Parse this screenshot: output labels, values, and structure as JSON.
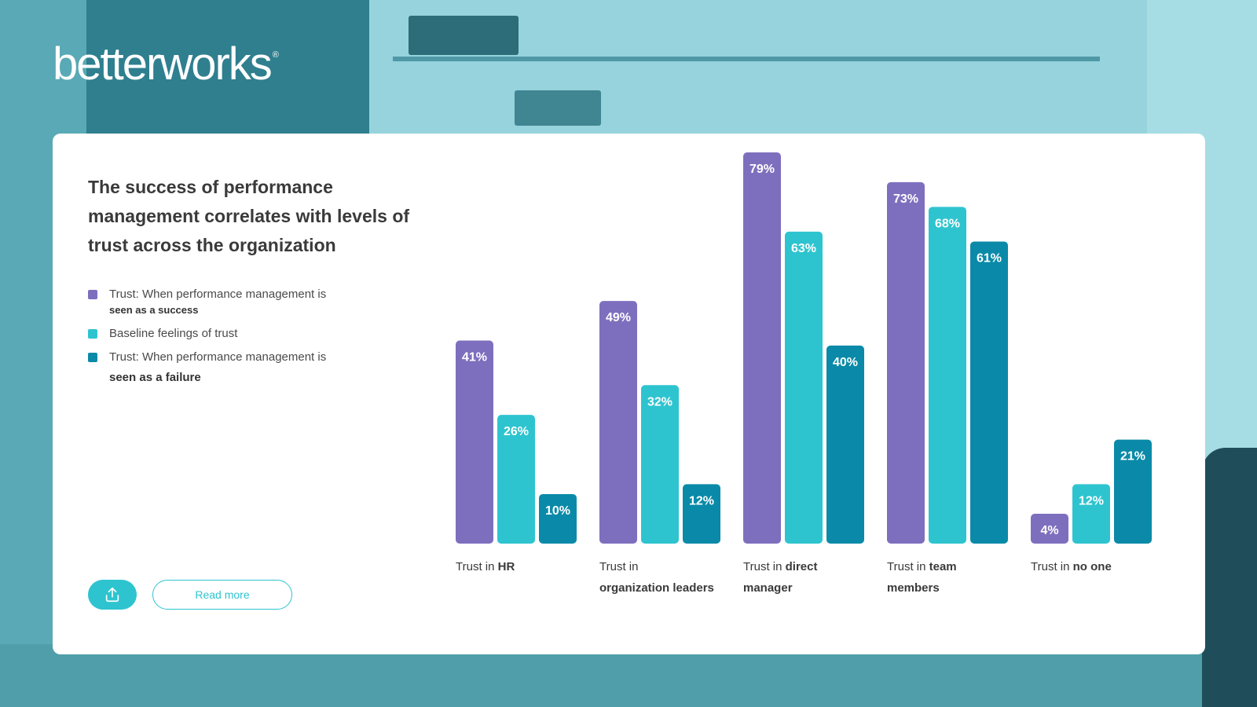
{
  "brand": {
    "logo_text": "betterworks",
    "trademark": "®"
  },
  "colors": {
    "series1": "#7e6fbe",
    "series2": "#2ec4cf",
    "series3": "#0a8aa8",
    "accent": "#2ec4cf"
  },
  "actions": {
    "read_more_label": "Read more",
    "share_icon": "share-upload-icon"
  },
  "chart_data": {
    "type": "bar",
    "title": "The success of performance management correlates with levels of trust across the organization",
    "categories": [
      {
        "prefix": "Trust in",
        "bold": "HR"
      },
      {
        "prefix": "Trust in",
        "bold": "organization leaders"
      },
      {
        "prefix": "Trust in",
        "bold": "direct manager"
      },
      {
        "prefix": "Trust in",
        "bold": "team members"
      },
      {
        "prefix": "Trust in",
        "bold": "no one"
      }
    ],
    "series": [
      {
        "name": "Trust: When performance management is",
        "name_bold": "seen as a success",
        "values": [
          41,
          49,
          79,
          73,
          4
        ]
      },
      {
        "name": "Baseline feelings of trust",
        "name_bold": "",
        "values": [
          26,
          32,
          63,
          68,
          12
        ]
      },
      {
        "name": "Trust: When performance management is",
        "name_bold": "seen as a failure",
        "values": [
          10,
          12,
          40,
          61,
          21
        ]
      }
    ],
    "value_suffix": "%",
    "ylim": [
      0,
      79
    ],
    "legend": "left",
    "grid": false
  }
}
